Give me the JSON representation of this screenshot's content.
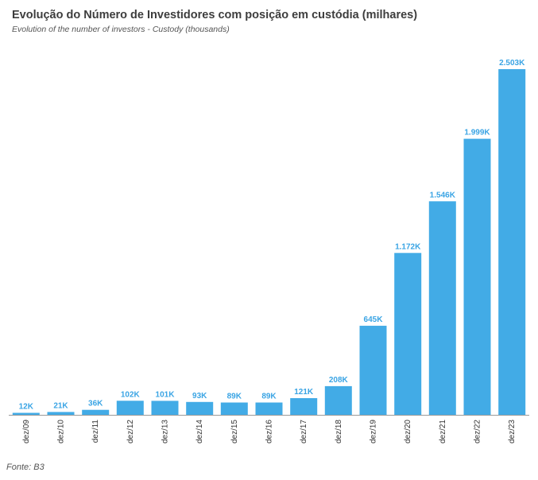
{
  "title": "Evolução do Número de Investidores com posição em custódia (milhares)",
  "subtitle": "Evolution of the number of investors - Custody (thousands)",
  "source": "Fonte: B3",
  "colors": {
    "bar": "#42ABE6",
    "label": "#3AA4E4",
    "axis": "#9a9a9a"
  },
  "chart_data": {
    "type": "bar",
    "title": "Evolução do Número de Investidores com posição em custódia (milhares)",
    "subtitle": "Evolution of the number of investors - Custody (thousands)",
    "categories": [
      "dez/09",
      "dez/10",
      "dez/11",
      "dez/12",
      "dez/13",
      "dez/14",
      "dez/15",
      "dez/16",
      "dez/17",
      "dez/18",
      "dez/19",
      "dez/20",
      "dez/21",
      "dez/22",
      "dez/23"
    ],
    "values": [
      12,
      21,
      36,
      102,
      101,
      93,
      89,
      89,
      121,
      208,
      645,
      1172,
      1546,
      1999,
      2503
    ],
    "data_labels": [
      "12K",
      "21K",
      "36K",
      "102K",
      "101K",
      "93K",
      "89K",
      "89K",
      "121K",
      "208K",
      "645K",
      "1.172K",
      "1.546K",
      "1.999K",
      "2.503K"
    ],
    "xlabel": "",
    "ylabel": "",
    "ylim": [
      0,
      2503
    ],
    "grid": false,
    "legend": "none"
  }
}
